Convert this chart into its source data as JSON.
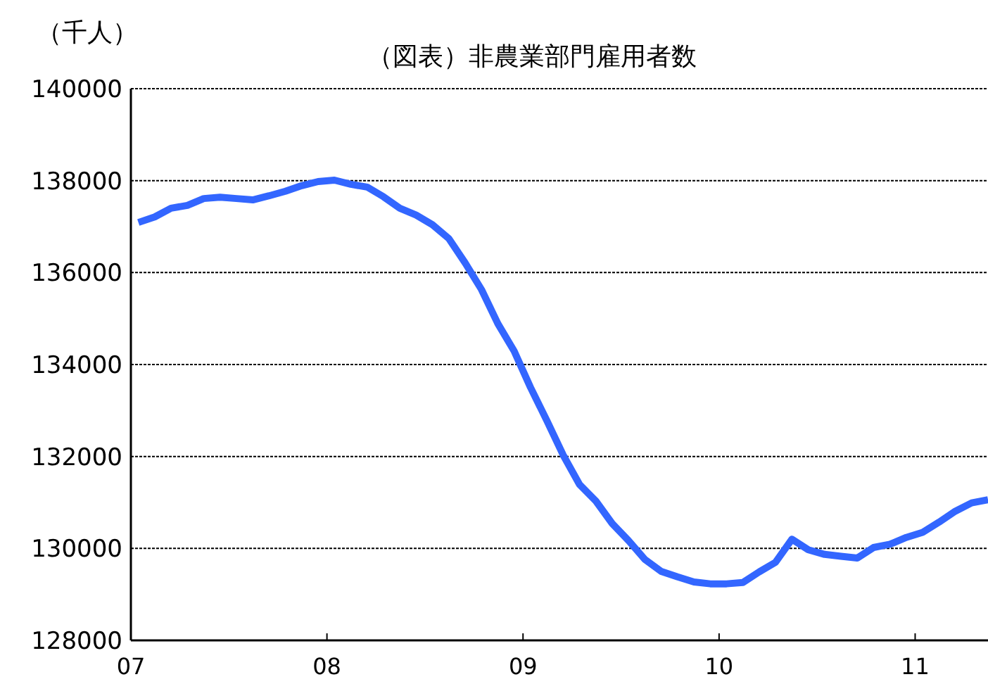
{
  "chart_data": {
    "type": "line",
    "title": "（図表）非農業部門雇用者数",
    "ylabel": "（千人）",
    "x": [
      "2007-01-15",
      "2007-02-15",
      "2007-03-15",
      "2007-04-15",
      "2007-05-15",
      "2007-06-15",
      "2007-07-15",
      "2007-08-15",
      "2007-09-15",
      "2007-10-15",
      "2007-11-15",
      "2007-12-15",
      "2008-01-15",
      "2008-02-15",
      "2008-03-15",
      "2008-04-15",
      "2008-05-15",
      "2008-06-15",
      "2008-07-15",
      "2008-08-15",
      "2008-09-15",
      "2008-10-15",
      "2008-11-15",
      "2008-12-15",
      "2009-01-15",
      "2009-02-15",
      "2009-03-15",
      "2009-04-15",
      "2009-05-15",
      "2009-06-15",
      "2009-07-15",
      "2009-08-15",
      "2009-09-15",
      "2009-10-15",
      "2009-11-15",
      "2009-12-15",
      "2010-01-15",
      "2010-02-15",
      "2010-03-15",
      "2010-04-15",
      "2010-05-15",
      "2010-06-15",
      "2010-07-15",
      "2010-08-15",
      "2010-09-15",
      "2010-10-15",
      "2010-11-15",
      "2010-12-15",
      "2011-01-15",
      "2011-02-15",
      "2011-03-15",
      "2011-04-15",
      "2011-05-15"
    ],
    "series": [
      {
        "color": "#3366ff",
        "values": [
          137090,
          137210,
          137400,
          137460,
          137610,
          137640,
          137610,
          137580,
          137670,
          137770,
          137890,
          137980,
          138010,
          137920,
          137860,
          137650,
          137400,
          137250,
          137040,
          136740,
          136210,
          135630,
          134890,
          134290,
          133500,
          132780,
          132030,
          131390,
          131030,
          130540,
          130170,
          129760,
          129500,
          129380,
          129270,
          129230,
          129230,
          129260,
          129490,
          129700,
          130200,
          129970,
          129870,
          129830,
          129790,
          130020,
          130090,
          130240,
          130350,
          130570,
          130810,
          130990,
          131060
        ]
      }
    ],
    "xlim": [
      "2007-01-01",
      "2011-05-15"
    ],
    "xticks": [
      {
        "value": "2007-01-01",
        "label": "07"
      },
      {
        "value": "2008-01-01",
        "label": "08"
      },
      {
        "value": "2009-01-01",
        "label": "09"
      },
      {
        "value": "2010-01-01",
        "label": "10"
      },
      {
        "value": "2011-01-01",
        "label": "11"
      }
    ],
    "ylim": [
      128000,
      140000
    ],
    "yticks": [
      128000,
      130000,
      132000,
      134000,
      136000,
      138000,
      140000
    ],
    "grid": "y",
    "line_style": "solid",
    "marker": "none"
  }
}
